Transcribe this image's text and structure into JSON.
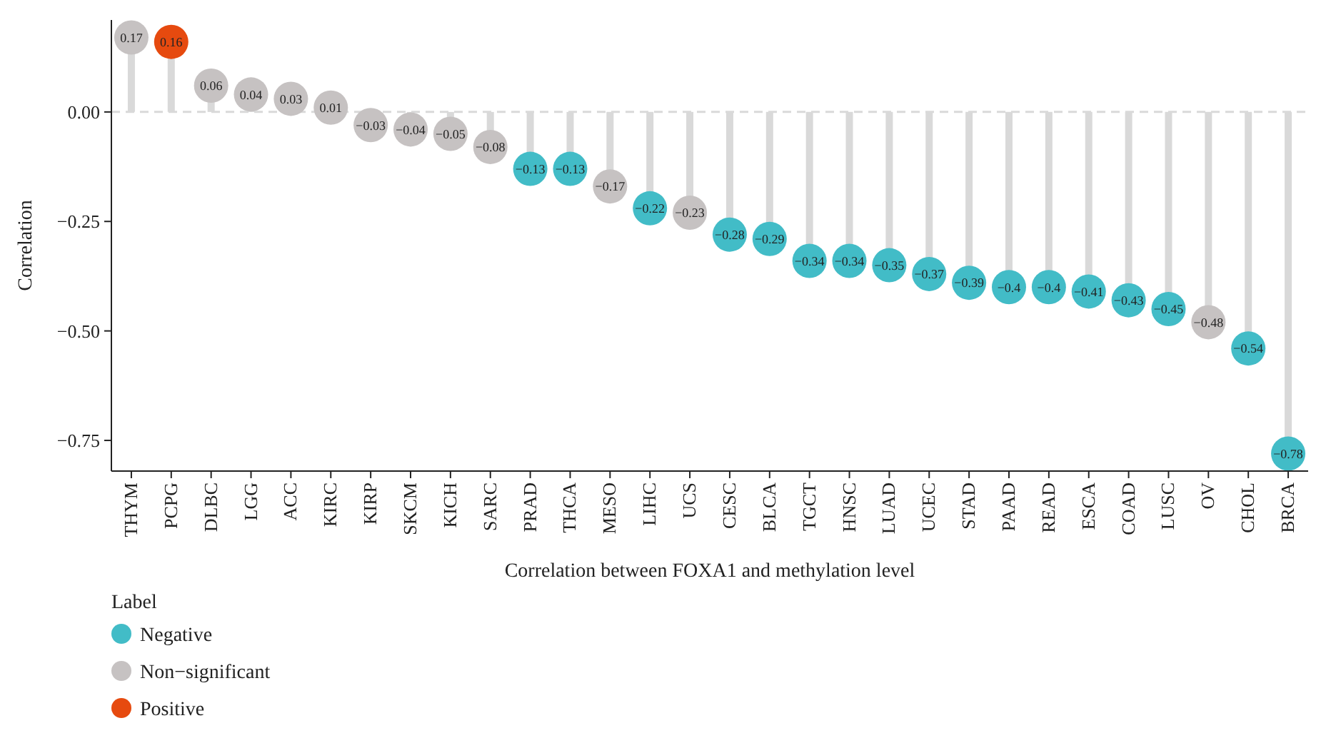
{
  "chart_data": {
    "type": "lollipop",
    "xlabel": "Correlation between FOXA1 and methylation level",
    "ylabel": "Correlation",
    "legend_title": "Label",
    "legend": "bottom left",
    "data_labels": true,
    "categories": [
      "THYM",
      "PCPG",
      "DLBC",
      "LGG",
      "ACC",
      "KIRC",
      "KIRP",
      "SKCM",
      "KICH",
      "SARC",
      "PRAD",
      "THCA",
      "MESO",
      "LIHC",
      "UCS",
      "CESC",
      "BLCA",
      "TGCT",
      "HNSC",
      "LUAD",
      "UCEC",
      "STAD",
      "PAAD",
      "READ",
      "ESCA",
      "COAD",
      "LUSC",
      "OV",
      "CHOL",
      "BRCA"
    ],
    "series": [
      {
        "name": "Negative",
        "color": "#42bcc7",
        "values": [
          null,
          null,
          null,
          null,
          null,
          null,
          null,
          null,
          null,
          null,
          -0.13,
          -0.13,
          null,
          -0.22,
          null,
          -0.28,
          -0.29,
          -0.34,
          -0.34,
          -0.35,
          -0.37,
          -0.39,
          -0.4,
          -0.4,
          -0.41,
          -0.43,
          -0.45,
          null,
          -0.54,
          -0.78
        ]
      },
      {
        "name": "Non−significant",
        "color": "#c6c2c2",
        "values": [
          0.17,
          null,
          0.06,
          0.04,
          0.03,
          0.01,
          -0.03,
          -0.04,
          -0.05,
          -0.08,
          null,
          null,
          -0.17,
          null,
          -0.23,
          null,
          null,
          null,
          null,
          null,
          null,
          null,
          null,
          null,
          null,
          null,
          null,
          -0.48,
          null,
          null
        ]
      },
      {
        "name": "Positive",
        "color": "#e64a0f",
        "values": [
          null,
          0.16,
          null,
          null,
          null,
          null,
          null,
          null,
          null,
          null,
          null,
          null,
          null,
          null,
          null,
          null,
          null,
          null,
          null,
          null,
          null,
          null,
          null,
          null,
          null,
          null,
          null,
          null,
          null,
          null
        ]
      }
    ],
    "ylim": [
      -0.82,
      0.21
    ],
    "yticks": [
      {
        "value": 0,
        "label": "0.00"
      },
      {
        "value": -0.25,
        "label": "−0.25"
      },
      {
        "value": -0.5,
        "label": "−0.50"
      },
      {
        "value": -0.75,
        "label": "−0.75"
      }
    ],
    "ref_lines": [
      {
        "axis": "y",
        "value": 0,
        "color": "#d9d9d9",
        "line_style": "dashed"
      }
    ]
  }
}
